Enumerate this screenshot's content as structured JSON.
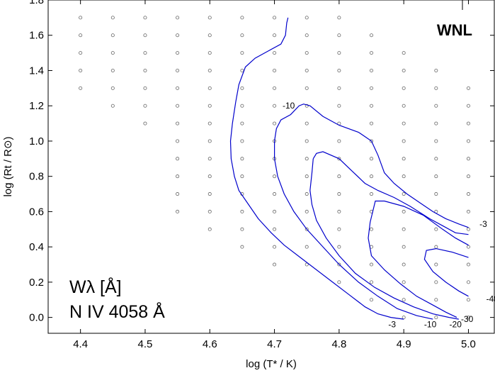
{
  "chart_data": {
    "type": "line",
    "title": "",
    "xlabel": "log (T* / K)",
    "ylabel": "log (Rt / R⊙)",
    "xlim": [
      4.35,
      5.04
    ],
    "ylim": [
      -0.09,
      1.8
    ],
    "xticks": [
      "4.4",
      "4.5",
      "4.6",
      "4.7",
      "4.8",
      "4.9",
      "5.0"
    ],
    "yticks": [
      "0.0",
      "0.2",
      "0.4",
      "0.6",
      "0.8",
      "1.0",
      "1.2",
      "1.4",
      "1.6",
      "1.8"
    ],
    "grid": false,
    "annotations": {
      "wr_type": "WNL",
      "quantity": "Wλ [Å]",
      "line": "N IV 4058 Å"
    },
    "contour_labels": [
      {
        "text": "-10",
        "x": 4.722,
        "y": 1.2
      },
      {
        "text": "-3",
        "x": 5.023,
        "y": 0.53
      },
      {
        "text": "-40",
        "x": 5.037,
        "y": 0.105
      },
      {
        "text": "-30",
        "x": 4.998,
        "y": -0.01
      },
      {
        "text": "-3",
        "x": 4.882,
        "y": -0.04
      },
      {
        "text": "-10",
        "x": 4.941,
        "y": -0.04
      },
      {
        "text": "-20",
        "x": 4.98,
        "y": -0.04
      }
    ],
    "model_grid": [
      {
        "x": 4.4,
        "y": [
          1.3,
          1.4,
          1.5,
          1.6,
          1.7
        ]
      },
      {
        "x": 4.45,
        "y": [
          1.2,
          1.3,
          1.4,
          1.5,
          1.6,
          1.7
        ]
      },
      {
        "x": 4.5,
        "y": [
          1.1,
          1.2,
          1.3,
          1.4,
          1.5,
          1.6,
          1.7
        ]
      },
      {
        "x": 4.55,
        "y": [
          0.6,
          0.7,
          0.8,
          0.9,
          1.0,
          1.1,
          1.2,
          1.3,
          1.4,
          1.5,
          1.6,
          1.7
        ]
      },
      {
        "x": 4.6,
        "y": [
          0.5,
          0.6,
          0.7,
          0.8,
          0.9,
          1.0,
          1.1,
          1.2,
          1.3,
          1.4,
          1.5,
          1.6,
          1.7
        ]
      },
      {
        "x": 4.65,
        "y": [
          0.4,
          0.5,
          0.6,
          0.7,
          0.8,
          0.9,
          1.0,
          1.1,
          1.2,
          1.3,
          1.4,
          1.5,
          1.6,
          1.7
        ]
      },
      {
        "x": 4.7,
        "y": [
          0.3,
          0.4,
          0.5,
          0.6,
          0.7,
          0.8,
          0.9,
          1.0,
          1.1,
          1.2,
          1.3,
          1.4,
          1.5,
          1.6,
          1.7
        ]
      },
      {
        "x": 4.75,
        "y": [
          0.3,
          0.4,
          0.5,
          0.6,
          0.7,
          0.8,
          0.9,
          1.0,
          1.1,
          1.2,
          1.3,
          1.4,
          1.5,
          1.6,
          1.7
        ]
      },
      {
        "x": 4.8,
        "y": [
          0.2,
          0.3,
          0.4,
          0.5,
          0.6,
          0.7,
          0.8,
          0.9,
          1.0,
          1.1,
          1.2,
          1.3,
          1.4,
          1.5,
          1.6,
          1.7
        ]
      },
      {
        "x": 4.85,
        "y": [
          0.1,
          0.2,
          0.3,
          0.4,
          0.5,
          0.6,
          0.7,
          0.8,
          0.9,
          1.0,
          1.1,
          1.2,
          1.3,
          1.4,
          1.5,
          1.6
        ]
      },
      {
        "x": 4.9,
        "y": [
          0.0,
          0.1,
          0.2,
          0.3,
          0.4,
          0.5,
          0.6,
          0.7,
          0.8,
          0.9,
          1.0,
          1.1,
          1.2,
          1.3,
          1.4,
          1.5
        ]
      },
      {
        "x": 4.95,
        "y": [
          0.0,
          0.1,
          0.2,
          0.3,
          0.4,
          0.5,
          0.6,
          0.7,
          0.8,
          0.9,
          1.0,
          1.1,
          1.2,
          1.3,
          1.4
        ]
      },
      {
        "x": 5.0,
        "y": [
          0.0,
          0.1,
          0.2,
          0.3,
          0.4,
          0.5,
          0.6,
          0.7,
          0.8,
          0.9,
          1.0,
          1.1,
          1.2,
          1.3
        ]
      }
    ],
    "series": [
      {
        "name": "-3",
        "color": "#0000cc",
        "points": [
          [
            4.721,
            1.7
          ],
          [
            4.719,
            1.67
          ],
          [
            4.717,
            1.6
          ],
          [
            4.71,
            1.55
          ],
          [
            4.69,
            1.51
          ],
          [
            4.67,
            1.47
          ],
          [
            4.655,
            1.42
          ],
          [
            4.645,
            1.32
          ],
          [
            4.64,
            1.22
          ],
          [
            4.635,
            1.1
          ],
          [
            4.632,
            1.0
          ],
          [
            4.633,
            0.9
          ],
          [
            4.638,
            0.8
          ],
          [
            4.645,
            0.72
          ],
          [
            4.66,
            0.64
          ],
          [
            4.675,
            0.56
          ],
          [
            4.695,
            0.48
          ],
          [
            4.715,
            0.41
          ],
          [
            4.74,
            0.34
          ],
          [
            4.765,
            0.27
          ],
          [
            4.79,
            0.2
          ],
          [
            4.815,
            0.13
          ],
          [
            4.84,
            0.06
          ],
          [
            4.86,
            0.02
          ],
          [
            4.88,
            0.0
          ],
          [
            4.9,
            -0.01
          ]
        ]
      },
      {
        "name": "-10",
        "color": "#0000cc",
        "points": [
          [
            4.7,
            1.0
          ],
          [
            4.703,
            1.07
          ],
          [
            4.71,
            1.12
          ],
          [
            4.725,
            1.15
          ],
          [
            4.738,
            1.2
          ],
          [
            4.745,
            1.21
          ],
          [
            4.755,
            1.2
          ],
          [
            4.775,
            1.14
          ],
          [
            4.8,
            1.09
          ],
          [
            4.83,
            1.05
          ],
          [
            4.85,
            1.0
          ],
          [
            4.86,
            0.92
          ],
          [
            4.87,
            0.82
          ],
          [
            4.885,
            0.76
          ],
          [
            4.905,
            0.7
          ],
          [
            4.925,
            0.65
          ],
          [
            4.945,
            0.6
          ],
          [
            4.965,
            0.56
          ],
          [
            4.985,
            0.53
          ],
          [
            5.0,
            0.51
          ]
        ]
      },
      {
        "name": "-10 (inner)",
        "color": "#0000cc",
        "points": [
          [
            4.7,
            1.0
          ],
          [
            4.7,
            0.9
          ],
          [
            4.705,
            0.8
          ],
          [
            4.715,
            0.7
          ],
          [
            4.73,
            0.6
          ],
          [
            4.75,
            0.5
          ],
          [
            4.775,
            0.4
          ],
          [
            4.8,
            0.3
          ],
          [
            4.83,
            0.2
          ],
          [
            4.86,
            0.12
          ],
          [
            4.89,
            0.05
          ],
          [
            4.92,
            0.01
          ],
          [
            4.945,
            -0.01
          ]
        ]
      },
      {
        "name": "-20",
        "color": "#0000cc",
        "points": [
          [
            4.76,
            0.9
          ],
          [
            4.765,
            0.93
          ],
          [
            4.775,
            0.94
          ],
          [
            4.8,
            0.9
          ],
          [
            4.82,
            0.83
          ],
          [
            4.84,
            0.76
          ],
          [
            4.86,
            0.72
          ],
          [
            4.885,
            0.68
          ],
          [
            4.91,
            0.63
          ],
          [
            4.94,
            0.56
          ],
          [
            4.96,
            0.52
          ],
          [
            4.98,
            0.48
          ],
          [
            5.0,
            0.47
          ]
        ]
      },
      {
        "name": "-20 (inner)",
        "color": "#0000cc",
        "points": [
          [
            4.76,
            0.9
          ],
          [
            4.758,
            0.82
          ],
          [
            4.755,
            0.72
          ],
          [
            4.758,
            0.64
          ],
          [
            4.765,
            0.55
          ],
          [
            4.78,
            0.45
          ],
          [
            4.8,
            0.35
          ],
          [
            4.825,
            0.25
          ],
          [
            4.855,
            0.17
          ],
          [
            4.885,
            0.11
          ],
          [
            4.915,
            0.06
          ],
          [
            4.945,
            0.02
          ],
          [
            4.97,
            0.0
          ],
          [
            4.985,
            -0.01
          ]
        ]
      },
      {
        "name": "-30",
        "color": "#0000cc",
        "points": [
          [
            4.982,
            0.0
          ],
          [
            4.965,
            0.03
          ],
          [
            4.945,
            0.07
          ],
          [
            4.92,
            0.12
          ],
          [
            4.895,
            0.19
          ],
          [
            4.87,
            0.27
          ],
          [
            4.85,
            0.35
          ],
          [
            4.845,
            0.45
          ],
          [
            4.848,
            0.54
          ],
          [
            4.856,
            0.66
          ],
          [
            4.87,
            0.66
          ],
          [
            4.9,
            0.63
          ],
          [
            4.93,
            0.58
          ],
          [
            4.96,
            0.5
          ],
          [
            4.98,
            0.45
          ],
          [
            5.0,
            0.41
          ]
        ]
      },
      {
        "name": "-40",
        "color": "#0000cc",
        "points": [
          [
            5.0,
            0.12
          ],
          [
            4.985,
            0.15
          ],
          [
            4.965,
            0.2
          ],
          [
            4.945,
            0.26
          ],
          [
            4.932,
            0.33
          ],
          [
            4.935,
            0.38
          ],
          [
            4.95,
            0.39
          ],
          [
            4.975,
            0.37
          ],
          [
            5.0,
            0.34
          ]
        ]
      }
    ]
  }
}
